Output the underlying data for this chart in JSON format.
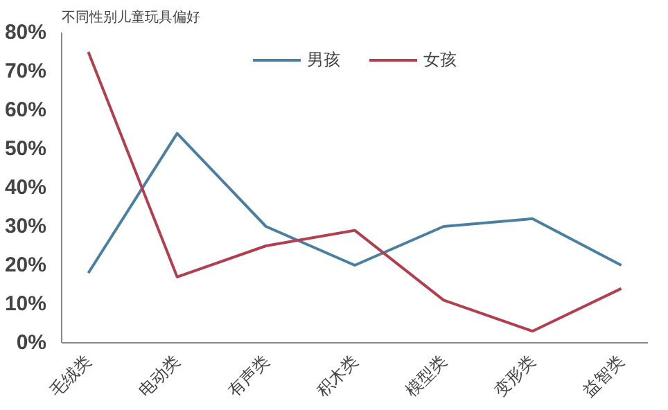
{
  "chart_data": {
    "type": "line",
    "title": "不同性别儿童玩具偏好",
    "categories": [
      "毛绒类",
      "电动类",
      "有声类",
      "积木类",
      "模型类",
      "变形类",
      "益智类"
    ],
    "series": [
      {
        "name": "男孩",
        "color": "#4a7fa0",
        "values": [
          18,
          54,
          30,
          20,
          30,
          32,
          20
        ]
      },
      {
        "name": "女孩",
        "color": "#b04050",
        "values": [
          75,
          17,
          25,
          29,
          11,
          3,
          14
        ]
      }
    ],
    "ylim": [
      0,
      80
    ],
    "yticks": [
      {
        "value": 0,
        "label": "0%"
      },
      {
        "value": 10,
        "label": "10%"
      },
      {
        "value": 20,
        "label": "20%"
      },
      {
        "value": 30,
        "label": "30%"
      },
      {
        "value": 40,
        "label": "40%"
      },
      {
        "value": 50,
        "label": "50%"
      },
      {
        "value": 60,
        "label": "60%"
      },
      {
        "value": 70,
        "label": "70%"
      },
      {
        "value": 80,
        "label": "80%"
      }
    ],
    "grid": false,
    "legend": "top",
    "marker": "none",
    "line_style": "solid"
  }
}
